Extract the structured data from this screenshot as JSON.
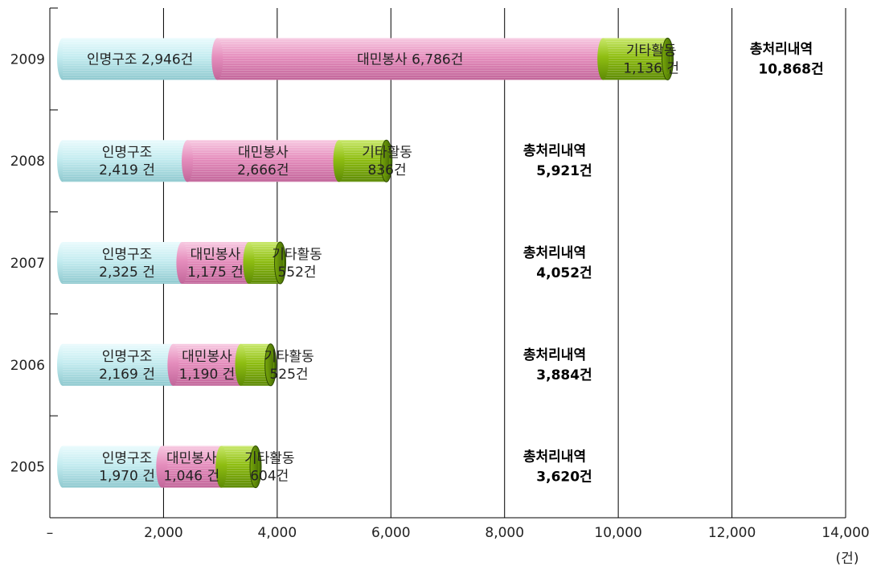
{
  "chart_data": {
    "type": "bar",
    "orientation": "horizontal",
    "stacked": true,
    "bar_style": "cylinder",
    "categories": [
      "2009",
      "2008",
      "2007",
      "2006",
      "2005"
    ],
    "series": [
      {
        "name": "인명구조",
        "color": "#b8e6ea",
        "values": [
          2946,
          2419,
          2325,
          2169,
          1970
        ]
      },
      {
        "name": "대민봉사",
        "color": "#e58ebd",
        "values": [
          6786,
          2666,
          1175,
          1190,
          1046
        ]
      },
      {
        "name": "기타활동",
        "color": "#8fbe12",
        "values": [
          1136,
          836,
          552,
          525,
          604
        ]
      }
    ],
    "segment_labels": [
      [
        {
          "name": "인명구조",
          "value": "2,946건"
        },
        {
          "name": "대민봉사",
          "value": "6,786건"
        },
        {
          "name": "기타활동",
          "value": "1,136 건"
        }
      ],
      [
        {
          "name": "인명구조",
          "value": "2,419 건"
        },
        {
          "name": "대민봉사",
          "value": "2,666건"
        },
        {
          "name": "기타활동",
          "value": "836건"
        }
      ],
      [
        {
          "name": "인명구조",
          "value": "2,325 건"
        },
        {
          "name": "대민봉사",
          "value": "1,175 건"
        },
        {
          "name": "기타활동",
          "value": "552건"
        }
      ],
      [
        {
          "name": "인명구조",
          "value": "2,169 건"
        },
        {
          "name": "대민봉사",
          "value": "1,190 건"
        },
        {
          "name": "기타활동",
          "value": "525건"
        }
      ],
      [
        {
          "name": "인명구조",
          "value": "1,970 건"
        },
        {
          "name": "대민봉사",
          "value": "1,046 건"
        },
        {
          "name": "기타활동",
          "value": "604건"
        }
      ]
    ],
    "totals": [
      {
        "label": "총처리내역",
        "value": "10,868건"
      },
      {
        "label": "총처리내역",
        "value": "5,921건"
      },
      {
        "label": "총처리내역",
        "value": "4,052건"
      },
      {
        "label": "총처리내역",
        "value": "3,884건"
      },
      {
        "label": "총처리내역",
        "value": "3,620건"
      }
    ],
    "xlim": [
      0,
      14000
    ],
    "x_ticks": [
      0,
      2000,
      4000,
      6000,
      8000,
      10000,
      12000,
      14000
    ],
    "x_tick_labels": [
      "–",
      "2,000",
      "4,000",
      "6,000",
      "8,000",
      "10,000",
      "12,000",
      "14,000"
    ],
    "x_unit": "(건)",
    "grid": "vertical",
    "title": "",
    "xlabel": "",
    "ylabel": ""
  }
}
